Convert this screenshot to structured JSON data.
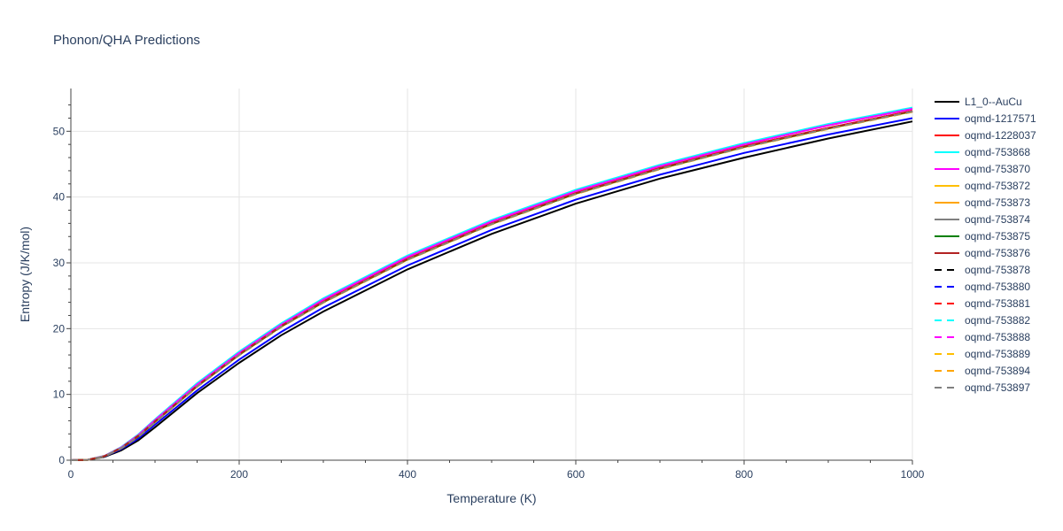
{
  "chart_data": {
    "type": "line",
    "title": "Phonon/QHA Predictions",
    "xlabel": "Temperature (K)",
    "ylabel": "Entropy (J/K/mol)",
    "xlim": [
      0,
      1000
    ],
    "ylim": [
      0,
      56.5
    ],
    "xticks": [
      0,
      200,
      400,
      600,
      800,
      1000
    ],
    "yticks": [
      0,
      10,
      20,
      30,
      40,
      50
    ],
    "grid": true,
    "legend_position": "right",
    "x": [
      0,
      20,
      40,
      60,
      80,
      100,
      150,
      200,
      250,
      300,
      400,
      500,
      600,
      700,
      800,
      900,
      1000
    ],
    "series": [
      {
        "name": "L1_0--AuCu",
        "color": "#000000",
        "dash": "solid",
        "values": [
          0,
          0.05,
          0.5,
          1.5,
          3.0,
          5.0,
          10.2,
          14.8,
          19.0,
          22.6,
          29.0,
          34.4,
          39.0,
          42.8,
          46.0,
          48.9,
          51.5
        ]
      },
      {
        "name": "oqmd-1217571",
        "color": "#0000ff",
        "dash": "solid",
        "values": [
          0,
          0.05,
          0.55,
          1.7,
          3.3,
          5.4,
          10.6,
          15.3,
          19.5,
          23.2,
          29.6,
          35.0,
          39.6,
          43.4,
          46.7,
          49.5,
          52.0
        ]
      },
      {
        "name": "oqmd-1228037",
        "color": "#ff0000",
        "dash": "solid",
        "values": [
          0,
          0.06,
          0.62,
          1.9,
          3.7,
          5.9,
          11.3,
          16.1,
          20.4,
          24.1,
          30.6,
          36.0,
          40.6,
          44.4,
          47.7,
          50.5,
          53.1
        ]
      },
      {
        "name": "oqmd-753868",
        "color": "#00ffff",
        "dash": "solid",
        "values": [
          0,
          0.07,
          0.66,
          2.0,
          3.9,
          6.2,
          11.7,
          16.5,
          20.8,
          24.6,
          31.1,
          36.5,
          41.1,
          44.9,
          48.2,
          51.1,
          53.6
        ]
      },
      {
        "name": "oqmd-753870",
        "color": "#ff00ff",
        "dash": "solid",
        "values": [
          0,
          0.07,
          0.64,
          1.95,
          3.8,
          6.1,
          11.5,
          16.3,
          20.6,
          24.4,
          30.9,
          36.3,
          40.9,
          44.7,
          48.0,
          50.9,
          53.4
        ]
      },
      {
        "name": "oqmd-753872",
        "color": "#ffbf00",
        "dash": "solid",
        "values": [
          0,
          0.06,
          0.6,
          1.85,
          3.6,
          5.8,
          11.2,
          16.0,
          20.3,
          24.0,
          30.5,
          35.9,
          40.5,
          44.3,
          47.6,
          50.4,
          53.0
        ]
      },
      {
        "name": "oqmd-753873",
        "color": "#ffa500",
        "dash": "solid",
        "values": [
          0,
          0.06,
          0.6,
          1.85,
          3.6,
          5.8,
          11.2,
          16.0,
          20.3,
          24.0,
          30.5,
          35.9,
          40.5,
          44.3,
          47.6,
          50.4,
          53.0
        ]
      },
      {
        "name": "oqmd-753874",
        "color": "#808080",
        "dash": "solid",
        "values": [
          0,
          0.06,
          0.61,
          1.88,
          3.65,
          5.85,
          11.25,
          16.05,
          20.35,
          24.05,
          30.55,
          35.95,
          40.55,
          44.35,
          47.65,
          50.45,
          53.05
        ]
      },
      {
        "name": "oqmd-753875",
        "color": "#008000",
        "dash": "solid",
        "values": [
          0,
          0.06,
          0.61,
          1.88,
          3.65,
          5.85,
          11.25,
          16.05,
          20.35,
          24.05,
          30.55,
          35.95,
          40.55,
          44.35,
          47.65,
          50.45,
          53.05
        ]
      },
      {
        "name": "oqmd-753876",
        "color": "#b22222",
        "dash": "solid",
        "values": [
          0,
          0.06,
          0.62,
          1.9,
          3.7,
          5.9,
          11.3,
          16.1,
          20.4,
          24.1,
          30.6,
          36.0,
          40.6,
          44.4,
          47.7,
          50.5,
          53.1
        ]
      },
      {
        "name": "oqmd-753878",
        "color": "#000000",
        "dash": "dash",
        "values": [
          0,
          0.06,
          0.6,
          1.85,
          3.6,
          5.8,
          11.2,
          16.0,
          20.3,
          24.0,
          30.5,
          35.9,
          40.5,
          44.3,
          47.6,
          50.4,
          53.0
        ]
      },
      {
        "name": "oqmd-753880",
        "color": "#0000ff",
        "dash": "dash",
        "values": [
          0,
          0.06,
          0.61,
          1.88,
          3.65,
          5.85,
          11.25,
          16.05,
          20.35,
          24.05,
          30.55,
          35.95,
          40.55,
          44.35,
          47.65,
          50.45,
          53.05
        ]
      },
      {
        "name": "oqmd-753881",
        "color": "#ff0000",
        "dash": "dash",
        "values": [
          0,
          0.06,
          0.62,
          1.9,
          3.7,
          5.9,
          11.3,
          16.1,
          20.4,
          24.1,
          30.6,
          36.0,
          40.6,
          44.4,
          47.7,
          50.5,
          53.1
        ]
      },
      {
        "name": "oqmd-753882",
        "color": "#00ffff",
        "dash": "dash",
        "values": [
          0,
          0.07,
          0.65,
          1.98,
          3.85,
          6.15,
          11.6,
          16.4,
          20.7,
          24.5,
          31.0,
          36.4,
          41.0,
          44.8,
          48.1,
          51.0,
          53.5
        ]
      },
      {
        "name": "oqmd-753888",
        "color": "#ff00ff",
        "dash": "dash",
        "values": [
          0,
          0.07,
          0.64,
          1.95,
          3.8,
          6.1,
          11.5,
          16.3,
          20.6,
          24.4,
          30.9,
          36.3,
          40.9,
          44.7,
          48.0,
          50.9,
          53.4
        ]
      },
      {
        "name": "oqmd-753889",
        "color": "#ffbf00",
        "dash": "dash",
        "values": [
          0,
          0.06,
          0.59,
          1.83,
          3.55,
          5.75,
          11.15,
          15.95,
          20.25,
          23.95,
          30.45,
          35.85,
          40.45,
          44.25,
          47.55,
          50.35,
          52.95
        ]
      },
      {
        "name": "oqmd-753894",
        "color": "#ffa500",
        "dash": "dash",
        "values": [
          0,
          0.06,
          0.59,
          1.83,
          3.55,
          5.75,
          11.15,
          15.95,
          20.25,
          23.95,
          30.45,
          35.85,
          40.45,
          44.25,
          47.55,
          50.35,
          52.95
        ]
      },
      {
        "name": "oqmd-753897",
        "color": "#808080",
        "dash": "dash",
        "values": [
          0,
          0.06,
          0.6,
          1.85,
          3.6,
          5.8,
          11.2,
          16.0,
          20.3,
          24.0,
          30.5,
          35.9,
          40.5,
          44.3,
          47.6,
          50.4,
          53.0
        ]
      }
    ]
  }
}
